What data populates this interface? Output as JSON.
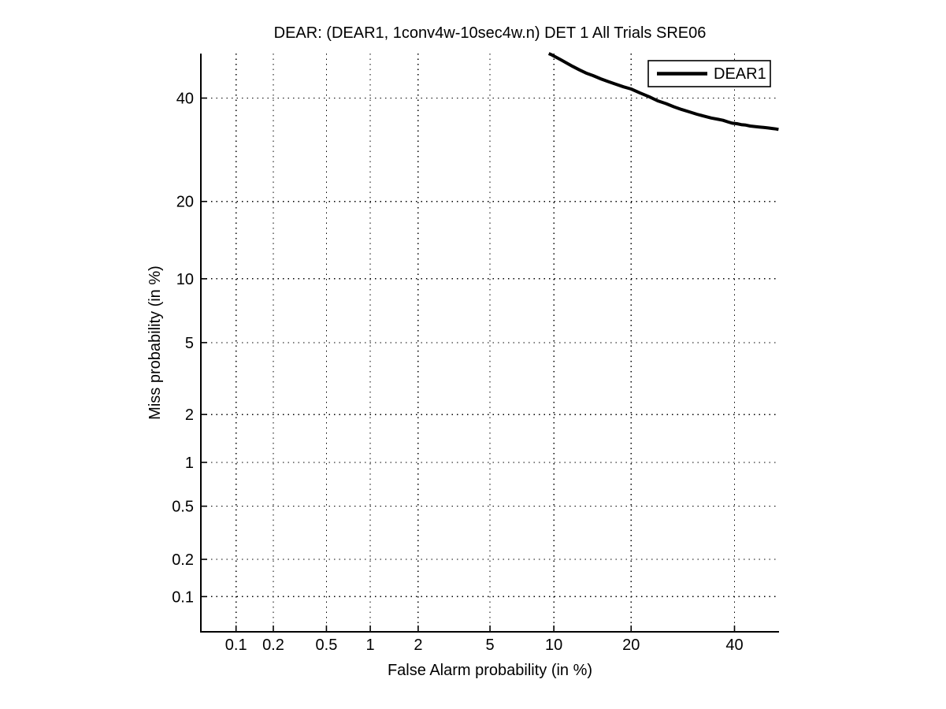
{
  "figure": {
    "background_color": "#ffffff",
    "foreground_color": "#000000"
  },
  "chart_data": {
    "type": "line",
    "subtype": "DET curve on normal-deviate (probit) axes",
    "title": "DEAR: (DEAR1, 1conv4w-10sec4w.n) DET 1 All Trials SRE06",
    "xlabel": "False Alarm probability (in %)",
    "ylabel": "Miss probability (in %)",
    "x_tick_labels": [
      "0.1",
      "0.2",
      "0.5",
      "1",
      "2",
      "5",
      "10",
      "20",
      "40"
    ],
    "y_tick_labels": [
      "40",
      "20",
      "10",
      "5",
      "2",
      "1",
      "0.5",
      "0.2",
      "0.1"
    ],
    "x_ticks_percent": [
      0.1,
      0.2,
      0.5,
      1,
      2,
      5,
      10,
      20,
      40
    ],
    "y_ticks_percent": [
      40,
      20,
      10,
      5,
      2,
      1,
      0.5,
      0.2,
      0.1
    ],
    "xlim_percent": [
      0.05,
      50
    ],
    "ylim_percent": [
      0.05,
      50
    ],
    "grid": "dotted",
    "grid_color": "#000000",
    "axis_color": "#000000",
    "legend": {
      "position": "top-right",
      "entries": [
        {
          "label": "DEAR1",
          "color": "#000000",
          "line_style": "solid"
        }
      ]
    },
    "series": [
      {
        "name": "DEAR1",
        "color": "#000000",
        "line_width": 4,
        "points_fa_miss_percent": [
          [
            9.5,
            50.0
          ],
          [
            9.8,
            49.7
          ],
          [
            10.2,
            49.2
          ],
          [
            10.7,
            48.6
          ],
          [
            11.3,
            47.9
          ],
          [
            12.0,
            47.1
          ],
          [
            12.8,
            46.3
          ],
          [
            13.6,
            45.6
          ],
          [
            14.5,
            45.0
          ],
          [
            15.5,
            44.3
          ],
          [
            16.5,
            43.7
          ],
          [
            17.6,
            43.1
          ],
          [
            18.8,
            42.5
          ],
          [
            20.0,
            42.0
          ],
          [
            21.5,
            41.1
          ],
          [
            23.0,
            40.3
          ],
          [
            24.5,
            39.4
          ],
          [
            26.0,
            38.8
          ],
          [
            27.5,
            38.1
          ],
          [
            29.0,
            37.5
          ],
          [
            30.5,
            37.0
          ],
          [
            32.0,
            36.5
          ],
          [
            33.5,
            36.1
          ],
          [
            35.0,
            35.7
          ],
          [
            36.5,
            35.4
          ],
          [
            37.5,
            35.2
          ],
          [
            38.5,
            34.9
          ],
          [
            39.5,
            34.6
          ],
          [
            40.5,
            34.5
          ],
          [
            41.5,
            34.3
          ],
          [
            42.5,
            34.2
          ],
          [
            43.5,
            34.0
          ],
          [
            44.5,
            33.9
          ],
          [
            45.5,
            33.8
          ],
          [
            46.5,
            33.7
          ],
          [
            47.5,
            33.6
          ],
          [
            48.5,
            33.5
          ],
          [
            49.3,
            33.4
          ],
          [
            49.9,
            33.3
          ]
        ]
      }
    ]
  }
}
